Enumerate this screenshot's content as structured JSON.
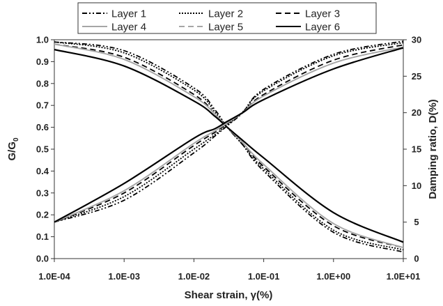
{
  "chart_data": {
    "type": "line",
    "xlabel": "Shear strain, γ(%)",
    "ylabel_left_main": "G/G",
    "ylabel_left_sub": "0",
    "ylabel_right": "Damping ratio, D(%)",
    "x_scale": "log",
    "x_ticks": [
      0.0001,
      0.001,
      0.01,
      0.1,
      1,
      10
    ],
    "x_tick_labels": [
      "1.0E-04",
      "1.0E-03",
      "1.0E-02",
      "1.0E-01",
      "1.0E+00",
      "1.0E+01"
    ],
    "xlim": [
      0.0001,
      10
    ],
    "ylim_left": [
      0,
      1.0
    ],
    "y_left_ticks": [
      0,
      0.1,
      0.2,
      0.3,
      0.4,
      0.5,
      0.6,
      0.7,
      0.8,
      0.9,
      1.0
    ],
    "y_left_tick_labels": [
      "0.0",
      "0.1",
      "0.2",
      "0.3",
      "0.4",
      "0.5",
      "0.6",
      "0.7",
      "0.8",
      "0.9",
      "1.0"
    ],
    "ylim_right": [
      0,
      30
    ],
    "y_right_ticks": [
      0,
      5,
      10,
      15,
      20,
      25,
      30
    ],
    "y_right_tick_labels": [
      "0",
      "5",
      "10",
      "15",
      "20",
      "25",
      "30"
    ],
    "grid": false,
    "legend_placement": "top",
    "x": [
      0.0001,
      0.001,
      0.01,
      0.02,
      0.03,
      0.05,
      0.1,
      1,
      10
    ],
    "modulus_series": [
      {
        "name": "Layer 1",
        "color": "#000000",
        "dash": "7,3,2,3,2,3",
        "axis": "left",
        "values": [
          0.99,
          0.95,
          0.78,
          0.68,
          0.6,
          0.52,
          0.4,
          0.12,
          0.03
        ]
      },
      {
        "name": "Layer 2",
        "color": "#000000",
        "dash": "2,2",
        "axis": "left",
        "values": [
          0.99,
          0.94,
          0.77,
          0.67,
          0.6,
          0.52,
          0.41,
          0.13,
          0.04
        ]
      },
      {
        "name": "Layer 3",
        "color": "#000000",
        "dash": "8,5",
        "axis": "left",
        "values": [
          0.98,
          0.92,
          0.75,
          0.66,
          0.6,
          0.53,
          0.42,
          0.15,
          0.05
        ]
      },
      {
        "name": "Layer 4",
        "color": "#a6a6a6",
        "dash": "",
        "axis": "left",
        "values": [
          0.98,
          0.91,
          0.74,
          0.66,
          0.6,
          0.53,
          0.43,
          0.16,
          0.05
        ]
      },
      {
        "name": "Layer 5",
        "color": "#a6a6a6",
        "dash": "8,5",
        "axis": "left",
        "values": [
          0.98,
          0.91,
          0.74,
          0.66,
          0.6,
          0.53,
          0.43,
          0.16,
          0.05
        ]
      },
      {
        "name": "Layer 6",
        "color": "#000000",
        "dash": "",
        "axis": "left",
        "values": [
          0.955,
          0.88,
          0.72,
          0.65,
          0.6,
          0.54,
          0.46,
          0.21,
          0.075
        ]
      }
    ],
    "damping_series": [
      {
        "name": "Layer 1",
        "color": "#000000",
        "dash": "7,3,2,3,2,3",
        "axis": "right",
        "values": [
          5.0,
          8.0,
          14.5,
          16.8,
          18.2,
          20.0,
          23.2,
          28.0,
          29.8
        ]
      },
      {
        "name": "Layer 2",
        "color": "#000000",
        "dash": "2,2",
        "axis": "right",
        "values": [
          5.0,
          8.5,
          15.0,
          17.0,
          18.3,
          20.1,
          23.0,
          27.8,
          29.6
        ]
      },
      {
        "name": "Layer 3",
        "color": "#000000",
        "dash": "8,5",
        "axis": "right",
        "values": [
          5.0,
          9.0,
          15.5,
          17.3,
          18.5,
          20.0,
          22.5,
          27.2,
          29.3
        ]
      },
      {
        "name": "Layer 4",
        "color": "#a6a6a6",
        "dash": "",
        "axis": "right",
        "values": [
          5.0,
          9.3,
          15.8,
          17.5,
          18.6,
          20.0,
          22.3,
          26.8,
          29.0
        ]
      },
      {
        "name": "Layer 5",
        "color": "#a6a6a6",
        "dash": "8,5",
        "axis": "right",
        "values": [
          5.0,
          9.3,
          15.8,
          17.5,
          18.6,
          20.0,
          22.3,
          26.8,
          29.0
        ]
      },
      {
        "name": "Layer 6",
        "color": "#000000",
        "dash": "",
        "axis": "right",
        "values": [
          5.0,
          10.3,
          16.5,
          17.8,
          18.8,
          20.0,
          21.8,
          26.0,
          28.9
        ]
      }
    ]
  },
  "legend": {
    "items": [
      {
        "label": "Layer 1",
        "color": "#000000",
        "dash": "7,3,2,3,2,3"
      },
      {
        "label": "Layer 2",
        "color": "#000000",
        "dash": "2,2"
      },
      {
        "label": "Layer 3",
        "color": "#000000",
        "dash": "8,5"
      },
      {
        "label": "Layer 4",
        "color": "#a6a6a6",
        "dash": ""
      },
      {
        "label": "Layer 5",
        "color": "#a6a6a6",
        "dash": "8,5"
      },
      {
        "label": "Layer 6",
        "color": "#000000",
        "dash": ""
      }
    ]
  }
}
